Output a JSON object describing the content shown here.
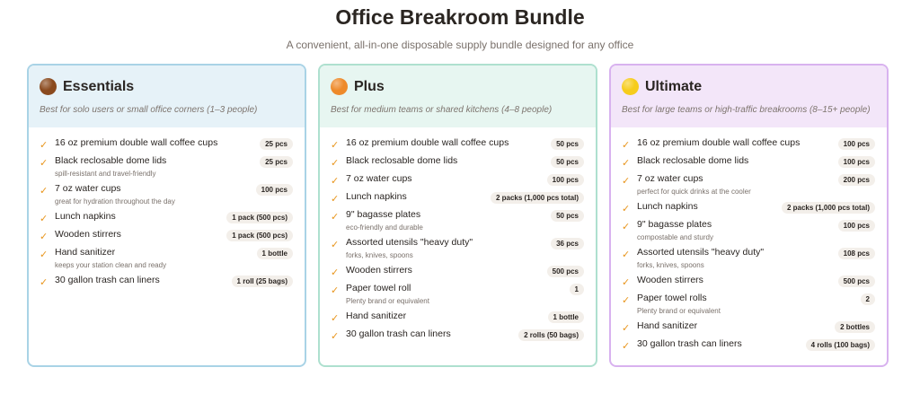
{
  "title": "Office Breakroom Bundle",
  "subtitle": "A convenient, all-in-one disposable supply bundle designed for any office",
  "tiers": [
    {
      "name": "Essentials",
      "description": "Best for solo users or small office corners (1–3 people)",
      "icon": "brown-circle-icon",
      "color": "#8a4a1e",
      "border": "#a9d3e6",
      "header_bg": "#e6f2f8",
      "items": [
        {
          "name": "16 oz premium double wall coffee cups",
          "qty": "25 pcs"
        },
        {
          "name": "Black reclosable dome lids",
          "qty": "25 pcs",
          "note": "spill-resistant and travel-friendly"
        },
        {
          "name": "7 oz water cups",
          "qty": "100 pcs",
          "note": "great for hydration throughout the day"
        },
        {
          "name": "Lunch napkins",
          "qty": "1 pack (500 pcs)"
        },
        {
          "name": "Wooden stirrers",
          "qty": "1 pack (500 pcs)"
        },
        {
          "name": "Hand sanitizer",
          "qty": "1 bottle",
          "note": "keeps your station clean and ready"
        },
        {
          "name": "30 gallon trash can liners",
          "qty": "1 roll (25 bags)"
        }
      ]
    },
    {
      "name": "Plus",
      "description": "Best for medium teams or shared kitchens (4–8 people)",
      "icon": "orange-circle-icon",
      "color": "#ee8a2a",
      "border": "#aee0cf",
      "header_bg": "#e7f6f1",
      "items": [
        {
          "name": "16 oz premium double wall coffee cups",
          "qty": "50 pcs"
        },
        {
          "name": "Black reclosable dome lids",
          "qty": "50 pcs"
        },
        {
          "name": "7 oz water cups",
          "qty": "100 pcs"
        },
        {
          "name": "Lunch napkins",
          "qty": "2 packs (1,000 pcs total)"
        },
        {
          "name": "9\" bagasse plates",
          "qty": "50 pcs",
          "note": "eco-friendly and durable"
        },
        {
          "name": "Assorted utensils \"heavy duty\"",
          "qty": "36 pcs",
          "note": "forks, knives, spoons"
        },
        {
          "name": "Wooden stirrers",
          "qty": "500 pcs"
        },
        {
          "name": "Paper towel roll",
          "qty": "1",
          "note": "Plenty brand or equivalent"
        },
        {
          "name": "Hand sanitizer",
          "qty": "1 bottle"
        },
        {
          "name": "30 gallon trash can liners",
          "qty": "2 rolls (50 bags)"
        }
      ]
    },
    {
      "name": "Ultimate",
      "description": "Best for large teams or high-traffic breakrooms (8–15+ people)",
      "icon": "yellow-circle-icon",
      "color": "#f6cc1c",
      "border": "#d8b2ef",
      "header_bg": "#f3e6f9",
      "items": [
        {
          "name": "16 oz premium double wall coffee cups",
          "qty": "100 pcs"
        },
        {
          "name": "Black reclosable dome lids",
          "qty": "100 pcs"
        },
        {
          "name": "7 oz water cups",
          "qty": "200 pcs",
          "note": "perfect for quick drinks at the cooler"
        },
        {
          "name": "Lunch napkins",
          "qty": "2 packs (1,000 pcs total)"
        },
        {
          "name": "9\" bagasse plates",
          "qty": "100 pcs",
          "note": "compostable and sturdy"
        },
        {
          "name": "Assorted utensils \"heavy duty\"",
          "qty": "108 pcs",
          "note": "forks, knives, spoons"
        },
        {
          "name": "Wooden stirrers",
          "qty": "500 pcs"
        },
        {
          "name": "Paper towel rolls",
          "qty": "2",
          "note": "Plenty brand or equivalent"
        },
        {
          "name": "Hand sanitizer",
          "qty": "2 bottles"
        },
        {
          "name": "30 gallon trash can liners",
          "qty": "4 rolls (100 bags)"
        }
      ]
    }
  ]
}
